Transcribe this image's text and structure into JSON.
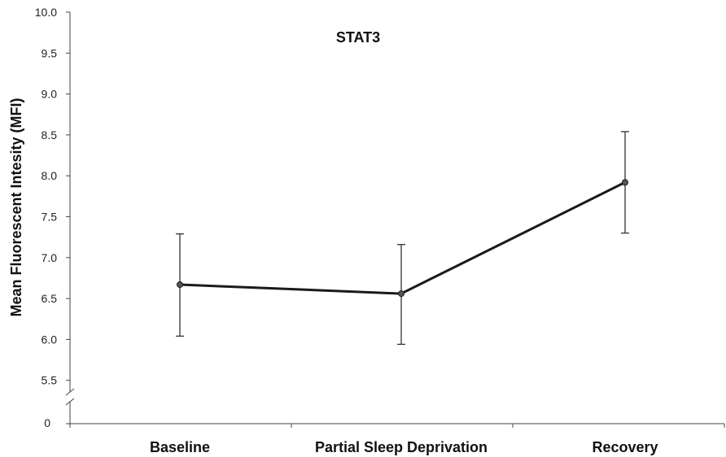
{
  "chart_data": {
    "type": "line",
    "title": "STAT3",
    "xlabel": "",
    "ylabel": "Mean Fluorescent Intesity (MFI)",
    "categories": [
      "Baseline",
      "Partial Sleep Deprivation",
      "Recovery"
    ],
    "series": [
      {
        "values": [
          6.67,
          6.56,
          7.92
        ],
        "error_upper": [
          7.29,
          7.16,
          8.54
        ],
        "error_lower": [
          6.04,
          5.94,
          7.3
        ]
      }
    ],
    "y_ticks": [
      "10.0",
      "9.5",
      "9.0",
      "8.5",
      "8.0",
      "7.5",
      "7.0",
      "6.5",
      "6.0",
      "5.5"
    ],
    "y_zero_label": "0",
    "ylim": [
      5.5,
      10.0
    ],
    "axis_break": true,
    "grid": false,
    "legend": "none",
    "line_color": "#1a1a1a"
  }
}
